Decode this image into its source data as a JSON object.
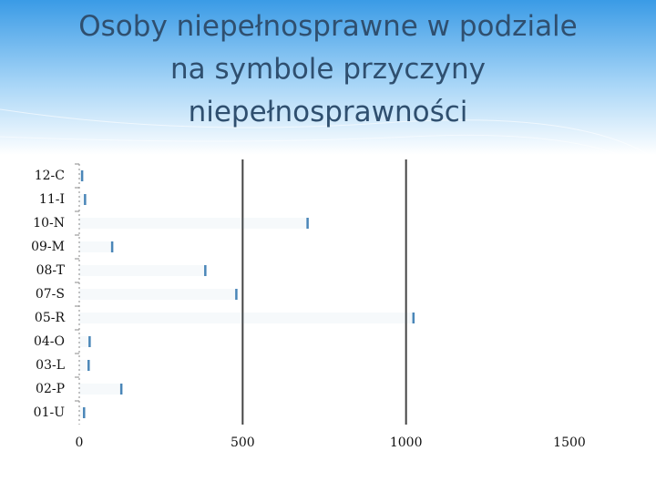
{
  "chart_data": {
    "type": "bar",
    "orientation": "horizontal",
    "title": "Osoby niepełnosprawne w podziale na symbole przyczyny niepełnosprawności",
    "categories": [
      "12-C",
      "11-I",
      "10-N",
      "09-M",
      "08-T",
      "07-S",
      "05-R",
      "04-O",
      "03-L",
      "02-P",
      "01-U"
    ],
    "values": [
      8,
      17,
      698,
      100,
      385,
      480,
      1022,
      31,
      28,
      128,
      14
    ],
    "color": "#4a86b8",
    "xlim": [
      0,
      1500
    ],
    "xticks": [
      0,
      500,
      1000,
      1500
    ],
    "grid": true
  }
}
